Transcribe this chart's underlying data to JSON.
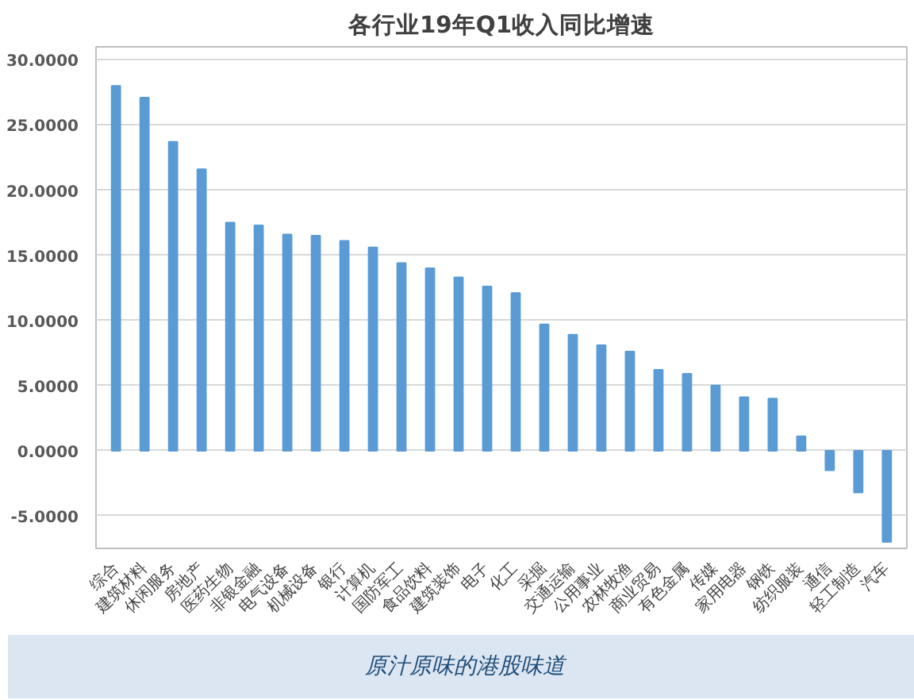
{
  "chart_data": {
    "type": "bar",
    "title": "各行业19年Q1收入同比增速",
    "categories": [
      "综合",
      "建筑材料",
      "休闲服务",
      "房地产",
      "医药生物",
      "非银金融",
      "电气设备",
      "机械设备",
      "银行",
      "计算机",
      "国防军工",
      "食品饮料",
      "建筑装饰",
      "电子",
      "化工",
      "采掘",
      "交通运输",
      "公用事业",
      "农林牧渔",
      "商业贸易",
      "有色金属",
      "传媒",
      "家用电器",
      "钢铁",
      "纺织服装",
      "通信",
      "轻工制造",
      "汽车"
    ],
    "values": [
      28.0,
      27.1,
      23.7,
      21.6,
      17.5,
      17.3,
      16.6,
      16.5,
      16.1,
      15.6,
      14.4,
      14.0,
      13.3,
      12.6,
      12.1,
      9.7,
      8.9,
      8.1,
      7.6,
      6.2,
      5.9,
      5.0,
      4.1,
      4.0,
      1.1,
      -1.5,
      -3.2,
      -7.0
    ],
    "color": "#5b9bd5",
    "ylim": [
      -7.5,
      31
    ],
    "yticks": [
      {
        "value": -5,
        "label": "-5.0000"
      },
      {
        "value": 0,
        "label": "0.0000"
      },
      {
        "value": 5,
        "label": "5.0000"
      },
      {
        "value": 10,
        "label": "10.0000"
      },
      {
        "value": 15,
        "label": "15.0000"
      },
      {
        "value": 20,
        "label": "20.0000"
      },
      {
        "value": 25,
        "label": "25.0000"
      },
      {
        "value": 30,
        "label": "30.0000"
      }
    ],
    "grid": "y",
    "annotations": [
      "原汁原味的港股味道"
    ]
  }
}
